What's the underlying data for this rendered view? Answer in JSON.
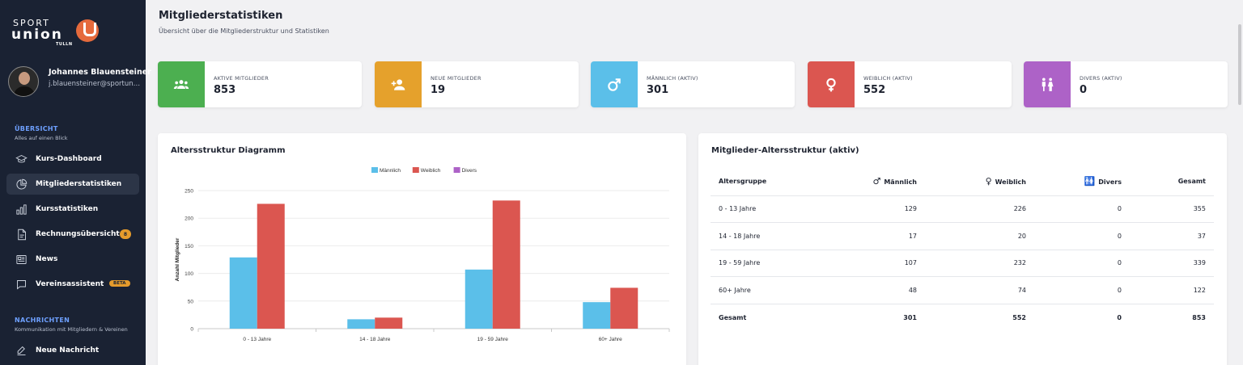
{
  "sidebar": {
    "logo": {
      "sport": "SPORT",
      "union": "union",
      "tulln": "TULLN"
    },
    "user": {
      "name": "Johannes Blauensteiner",
      "email": "j.blauensteiner@sportunion.at"
    },
    "sections": [
      {
        "title": "ÜBERSICHT",
        "subtitle": "Alles auf einen Blick"
      },
      {
        "title": "NACHRICHTEN",
        "subtitle": "Kommunikation mit Mitgliedern & Vereinen"
      }
    ],
    "items": [
      {
        "label": "Kurs-Dashboard",
        "icon": "graduation-cap-icon"
      },
      {
        "label": "Mitgliederstatistiken",
        "icon": "pie-chart-icon",
        "active": true
      },
      {
        "label": "Kursstatistiken",
        "icon": "bar-chart-icon"
      },
      {
        "label": "Rechnungsübersicht",
        "icon": "document-icon",
        "badge": "8"
      },
      {
        "label": "News",
        "icon": "newspaper-icon"
      },
      {
        "label": "Vereinsassistent",
        "icon": "chat-icon",
        "badge": "BETA"
      },
      {
        "label": "Neue Nachricht",
        "icon": "edit-icon"
      }
    ]
  },
  "header": {
    "title": "Mitgliederstatistiken",
    "subtitle": "Übersicht über die Mitgliederstruktur und Statistiken"
  },
  "stats": [
    {
      "label": "AKTIVE MITGLIEDER",
      "value": "853",
      "color": "#4caf50",
      "icon": "users-icon"
    },
    {
      "label": "NEUE MITGLIEDER",
      "value": "19",
      "color": "#e5a12c",
      "icon": "add-user-icon"
    },
    {
      "label": "MÄNNLICH (AKTIV)",
      "value": "301",
      "color": "#5bbfe9",
      "icon": "male-icon"
    },
    {
      "label": "WEIBLICH (AKTIV)",
      "value": "552",
      "color": "#db5650",
      "icon": "female-icon"
    },
    {
      "label": "DIVERS (AKTIV)",
      "value": "0",
      "color": "#ad62c7",
      "icon": "restroom-icon"
    }
  ],
  "chart_panel": {
    "title": "Altersstruktur Diagramm"
  },
  "chart_data": {
    "type": "bar",
    "categories": [
      "0 - 13 Jahre",
      "14 - 18 Jahre",
      "19 - 59 Jahre",
      "60+ Jahre"
    ],
    "series": [
      {
        "name": "Männlich",
        "values": [
          129,
          17,
          107,
          48
        ],
        "color": "#5bbfe9"
      },
      {
        "name": "Weiblich",
        "values": [
          226,
          20,
          232,
          74
        ],
        "color": "#db5650"
      },
      {
        "name": "Divers",
        "values": [
          0,
          0,
          0,
          0
        ],
        "color": "#ad62c7"
      }
    ],
    "ylabel": "Anzahl Mitglieder",
    "xlabel": "",
    "ylim": [
      0,
      250
    ],
    "yticks": [
      0,
      50,
      100,
      150,
      200,
      250
    ],
    "legend": "top-center",
    "grid": true
  },
  "table_panel": {
    "title": "Mitglieder-Altersstruktur (aktiv)",
    "headers": [
      "Altersgruppe",
      "Männlich",
      "Weiblich",
      "Divers",
      "Gesamt"
    ],
    "header_icons": [
      "",
      "♂",
      "♀",
      "🚻",
      ""
    ],
    "rows": [
      [
        "0 - 13 Jahre",
        "129",
        "226",
        "0",
        "355"
      ],
      [
        "14 - 18 Jahre",
        "17",
        "20",
        "0",
        "37"
      ],
      [
        "19 - 59 Jahre",
        "107",
        "232",
        "0",
        "339"
      ],
      [
        "60+ Jahre",
        "48",
        "74",
        "0",
        "122"
      ]
    ],
    "total": [
      "Gesamt",
      "301",
      "552",
      "0",
      "853"
    ]
  }
}
